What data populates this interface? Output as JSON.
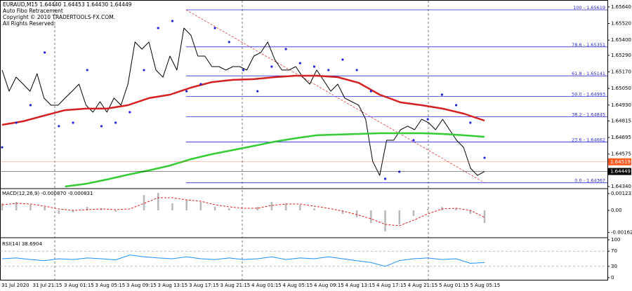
{
  "info": [
    "EURAUD,M15  1.64440 1.64453 1.64430 1.64449",
    "Auto Fibo Retracement",
    "Copyright © 2010 TRADERTOOLS-FX.COM.",
    "All Rights Reserved."
  ],
  "time_axis": [
    "31 Jul 2020",
    "31 Jul 21:15",
    "3 Aug 01:15",
    "3 Aug 05:15",
    "3 Aug 09:15",
    "3 Aug 13:15",
    "3 Aug 17:15",
    "3 Aug 21:15",
    "4 Aug 01:15",
    "4 Aug 05:15",
    "4 Aug 09:15",
    "4 Aug 13:15",
    "4 Aug 17:15",
    "4 Aug 21:15",
    "5 Aug 01:15",
    "5 Aug 05:15"
  ],
  "chart_data": [
    {
      "type": "line",
      "ylim": [
        1.6433,
        1.6568
      ],
      "grid": false,
      "yticks": [
        {
          "value": 1.6564,
          "label": "1.65640"
        },
        {
          "value": 1.6552,
          "label": "1.65520"
        },
        {
          "value": 1.654,
          "label": "1.65400"
        },
        {
          "value": 1.6529,
          "label": "1.65290"
        },
        {
          "value": 1.6517,
          "label": "1.65170"
        },
        {
          "value": 1.6505,
          "label": "1.65050"
        },
        {
          "value": 1.6493,
          "label": "1.64930"
        },
        {
          "value": 1.64815,
          "label": "1.64815"
        },
        {
          "value": 1.64695,
          "label": "1.64695"
        },
        {
          "value": 1.64575,
          "label": "1.64575"
        },
        {
          "value": 1.6434,
          "label": "1.64340"
        }
      ],
      "series": [
        {
          "color": "#000000",
          "style": "line",
          "width": 1,
          "values": [
            1.65183,
            1.6503,
            1.65132,
            1.65081,
            1.6503,
            1.65157,
            1.6498,
            1.64929,
            1.64929,
            1.6498,
            1.6503,
            1.65081,
            1.64929,
            1.64878,
            1.64954,
            1.64878,
            1.6498,
            1.64929,
            1.65081,
            1.65386,
            1.65335,
            1.65386,
            1.65183,
            1.65132,
            1.65284,
            1.65183,
            1.65487,
            1.65436,
            1.65284,
            1.65284,
            1.65208,
            1.65208,
            1.65183,
            1.65208,
            1.65208,
            1.65183,
            1.65284,
            1.6531,
            1.65386,
            1.65259,
            1.65183,
            1.65183,
            1.65208,
            1.65132,
            1.65081,
            1.65183,
            1.65107,
            1.6503,
            1.65081,
            1.6498,
            1.64954,
            1.64929,
            1.64827,
            1.64523,
            1.64421,
            1.64675,
            1.64675,
            1.64751,
            1.64777,
            1.64751,
            1.64827,
            1.64802,
            1.64751,
            1.64827,
            1.64751,
            1.64675,
            1.64624,
            1.64472,
            1.64421,
            1.64449
          ]
        },
        {
          "color": "#d42020",
          "style": "line",
          "width": 2.5,
          "values": [
            1.64787,
            1.64812,
            1.64853,
            1.64893,
            1.64904,
            1.64904,
            1.64929,
            1.6498,
            1.65005,
            1.65056,
            1.65096,
            1.65112,
            1.65117,
            1.65132,
            1.65142,
            1.65142,
            1.65132,
            1.65091,
            1.65005,
            1.64949,
            1.64929,
            1.64904,
            1.64868,
            1.64817
          ]
        },
        {
          "color": "#33cc33",
          "style": "line",
          "width": 2.5,
          "values": [
            null,
            null,
            null,
            1.6434,
            1.6436,
            1.64391,
            1.64426,
            1.64457,
            1.64492,
            1.64538,
            1.64574,
            1.64604,
            1.64634,
            1.64665,
            1.6469,
            1.64711,
            1.64716,
            1.64721,
            1.64726,
            1.64726,
            1.64726,
            1.64721,
            1.64711,
            1.647
          ]
        },
        {
          "color": "#2020e0",
          "style": "dots",
          "values": [
            1.64624,
            1.64802,
            1.64929,
            1.6531,
            1.64777,
            1.64802,
            1.65183,
            1.64777,
            1.64802,
            1.64878,
            1.65183,
            1.65487,
            1.65538,
            1.6503,
            1.65081,
            1.65487,
            1.65386,
            1.65183,
            1.6503,
            1.65208,
            1.65335,
            1.65233,
            1.65208,
            1.65183,
            1.65259,
            1.65183,
            1.6503,
            1.64396,
            1.64447,
            1.64675,
            1.64827,
            1.65005,
            1.64929,
            1.64802,
            1.64548
          ]
        }
      ],
      "fibo_color": "#2b2bd0",
      "fibo": [
        {
          "label": "100 - 1.65619",
          "value": 1.65619
        },
        {
          "label": "78.6 - 1.65351",
          "value": 1.65351
        },
        {
          "label": "61.8 - 1.65141",
          "value": 1.65141
        },
        {
          "label": "50.0 - 1.64993",
          "value": 1.64993
        },
        {
          "label": "38.2 - 1.64845",
          "value": 1.64845
        },
        {
          "label": "23.6 - 1.64662",
          "value": 1.64662
        },
        {
          "label": "0.0 - 1.64367",
          "value": 1.64367
        }
      ],
      "price_lines": [
        {
          "value": 1.64519,
          "color": "#ff5a1f"
        },
        {
          "value": 1.64449,
          "color": "#000000"
        }
      ]
    },
    {
      "type": "line",
      "title": "MACD(12,26,9) -0.000870 -0.000831",
      "ylim": [
        -0.001952,
        0.001541
      ],
      "grid": false,
      "yticks": [
        0.001233,
        {
          "value": 0,
          "label": "0.00"
        },
        -0.001621
      ],
      "series": [
        {
          "color": "#b8b8b8",
          "style": "bars",
          "values": [
            0.000514,
            0.000617,
            0.000411,
            0.000257,
            -0.000257,
            -0.000154,
            0.000257,
            0.000154,
            -0.000103,
            0,
            0.00113,
            0.001285,
            0.000514,
            0.000771,
            0.000617,
            0.000257,
            0.000154,
            0,
            0.000257,
            0.000617,
            0.000514,
            0.000411,
            0.000154,
            0,
            -0.000257,
            -0.000514,
            -0.000925,
            -0.001542,
            -0.001028,
            -0.000411,
            0.000103,
            0.000257,
            0.000154,
            -0.000257,
            -0.000925
          ]
        },
        {
          "color": "#e02020",
          "style": "dash",
          "width": 1,
          "values": [
            0.000411,
            0.000514,
            0.000463,
            0.000308,
            0.000103,
            0,
            5.1e-05,
            0.000103,
            5.1e-05,
            0.000103,
            0.000514,
            0.000925,
            0.000925,
            0.000771,
            0.000668,
            0.000411,
            0.000257,
            0.000154,
            0.000154,
            0.00036,
            0.000463,
            0.000463,
            0.000308,
            0.000154,
            -5.1e-05,
            -0.000308,
            -0.000617,
            -0.001028,
            -0.001131,
            -0.00072,
            -0.000257,
            0.000103,
            0.000154,
            0,
            -0.000514
          ]
        }
      ]
    },
    {
      "type": "line",
      "title": "RSI(14) 38.6904",
      "ylim": [
        0,
        100
      ],
      "grid": true,
      "yticks": [
        100,
        70,
        30,
        0
      ],
      "series": [
        {
          "color": "#1e90ff",
          "style": "line",
          "width": 1,
          "values": [
            50,
            52,
            48,
            45,
            50,
            48,
            52,
            50,
            47,
            60,
            55,
            52,
            50,
            55,
            50,
            48,
            52,
            48,
            50,
            55,
            48,
            52,
            50,
            55,
            50,
            45,
            40,
            30,
            45,
            50,
            52,
            48,
            50,
            38,
            40
          ]
        }
      ]
    }
  ]
}
